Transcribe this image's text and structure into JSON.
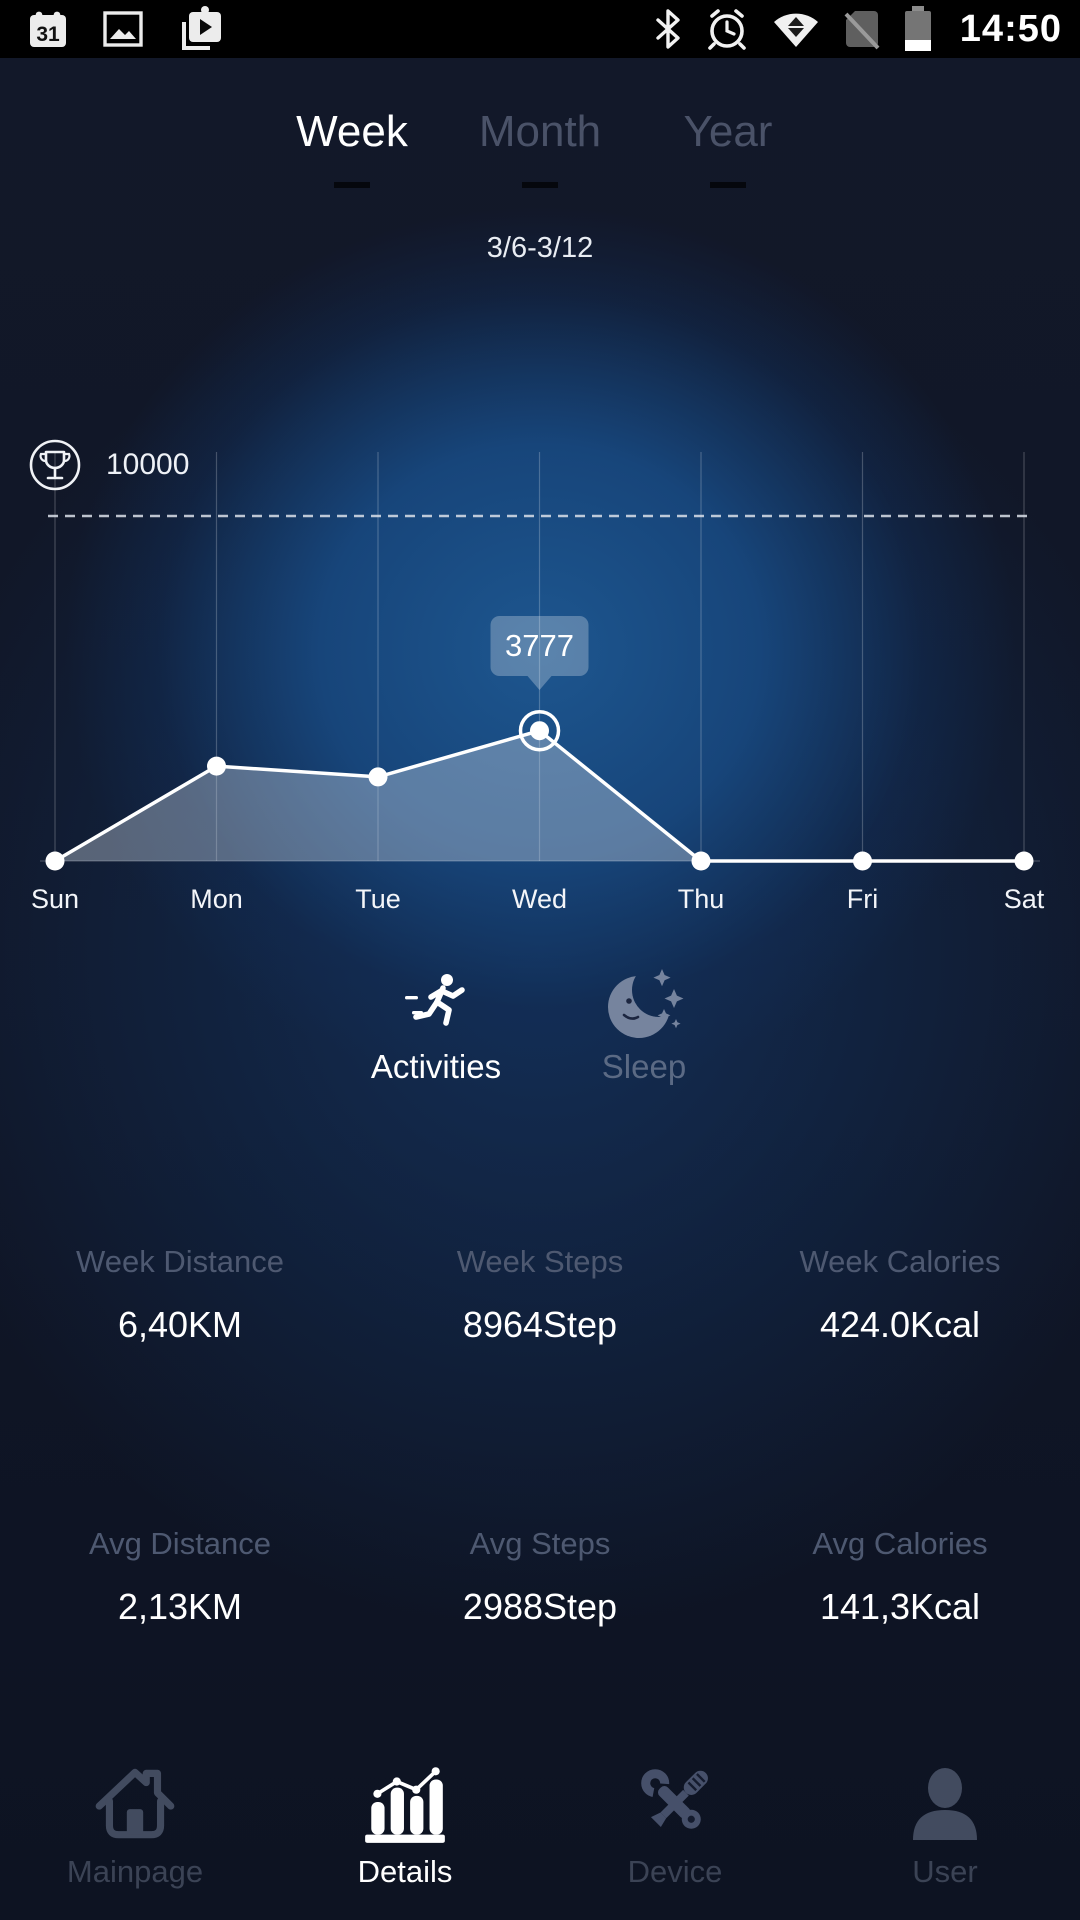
{
  "status_bar": {
    "time": "14:50",
    "calendar_day": "31",
    "left_icons": [
      "calendar",
      "gallery",
      "videos"
    ],
    "right_icons": [
      "bluetooth",
      "alarm",
      "wifi",
      "no-sim",
      "battery"
    ]
  },
  "tabs": [
    {
      "label": "Week",
      "active": true
    },
    {
      "label": "Month",
      "active": false
    },
    {
      "label": "Year",
      "active": false
    }
  ],
  "date_range": "3/6-3/12",
  "chart_data": {
    "type": "line",
    "categories": [
      "Sun",
      "Mon",
      "Tue",
      "Wed",
      "Thu",
      "Fri",
      "Sat"
    ],
    "values": [
      0,
      2750,
      2437,
      3777,
      0,
      0,
      0
    ],
    "goal": 10000,
    "goal_label": "10000",
    "ylim": [
      0,
      10000
    ],
    "selected_point": {
      "category": "Wed",
      "index": 3,
      "label": "3777"
    },
    "grid": "vertical-day-lines",
    "legend": "none",
    "unit": "steps",
    "line_color": "#ffffff",
    "area_color": "rgba(205,216,230,0.38)"
  },
  "activity_toggle": {
    "activities_label": "Activities",
    "sleep_label": "Sleep",
    "selected": "Activities"
  },
  "stats": {
    "week": [
      {
        "label": "Week Distance",
        "value": "6,40KM"
      },
      {
        "label": "Week Steps",
        "value": "8964Step"
      },
      {
        "label": "Week Calories",
        "value": "424.0Kcal"
      }
    ],
    "avg": [
      {
        "label": "Avg Distance",
        "value": "2,13KM"
      },
      {
        "label": "Avg Steps",
        "value": "2988Step"
      },
      {
        "label": "Avg Calories",
        "value": "141,3Kcal"
      }
    ]
  },
  "bottom_nav": [
    {
      "label": "Mainpage",
      "icon": "home-icon",
      "active": false
    },
    {
      "label": "Details",
      "icon": "bar-chart-icon",
      "active": true
    },
    {
      "label": "Device",
      "icon": "tools-icon",
      "active": false
    },
    {
      "label": "User",
      "icon": "user-icon",
      "active": false
    }
  ],
  "colors": {
    "background_glow": "#1d568f",
    "background_dark": "#0d1322",
    "statusbar": "#000000",
    "active_text": "#ffffff",
    "inactive_tab": "#4a5268",
    "muted_label": "#4e5971",
    "nav_inactive": "#424b5f",
    "tooltip_bg": "rgba(255,255,255,0.27)"
  }
}
